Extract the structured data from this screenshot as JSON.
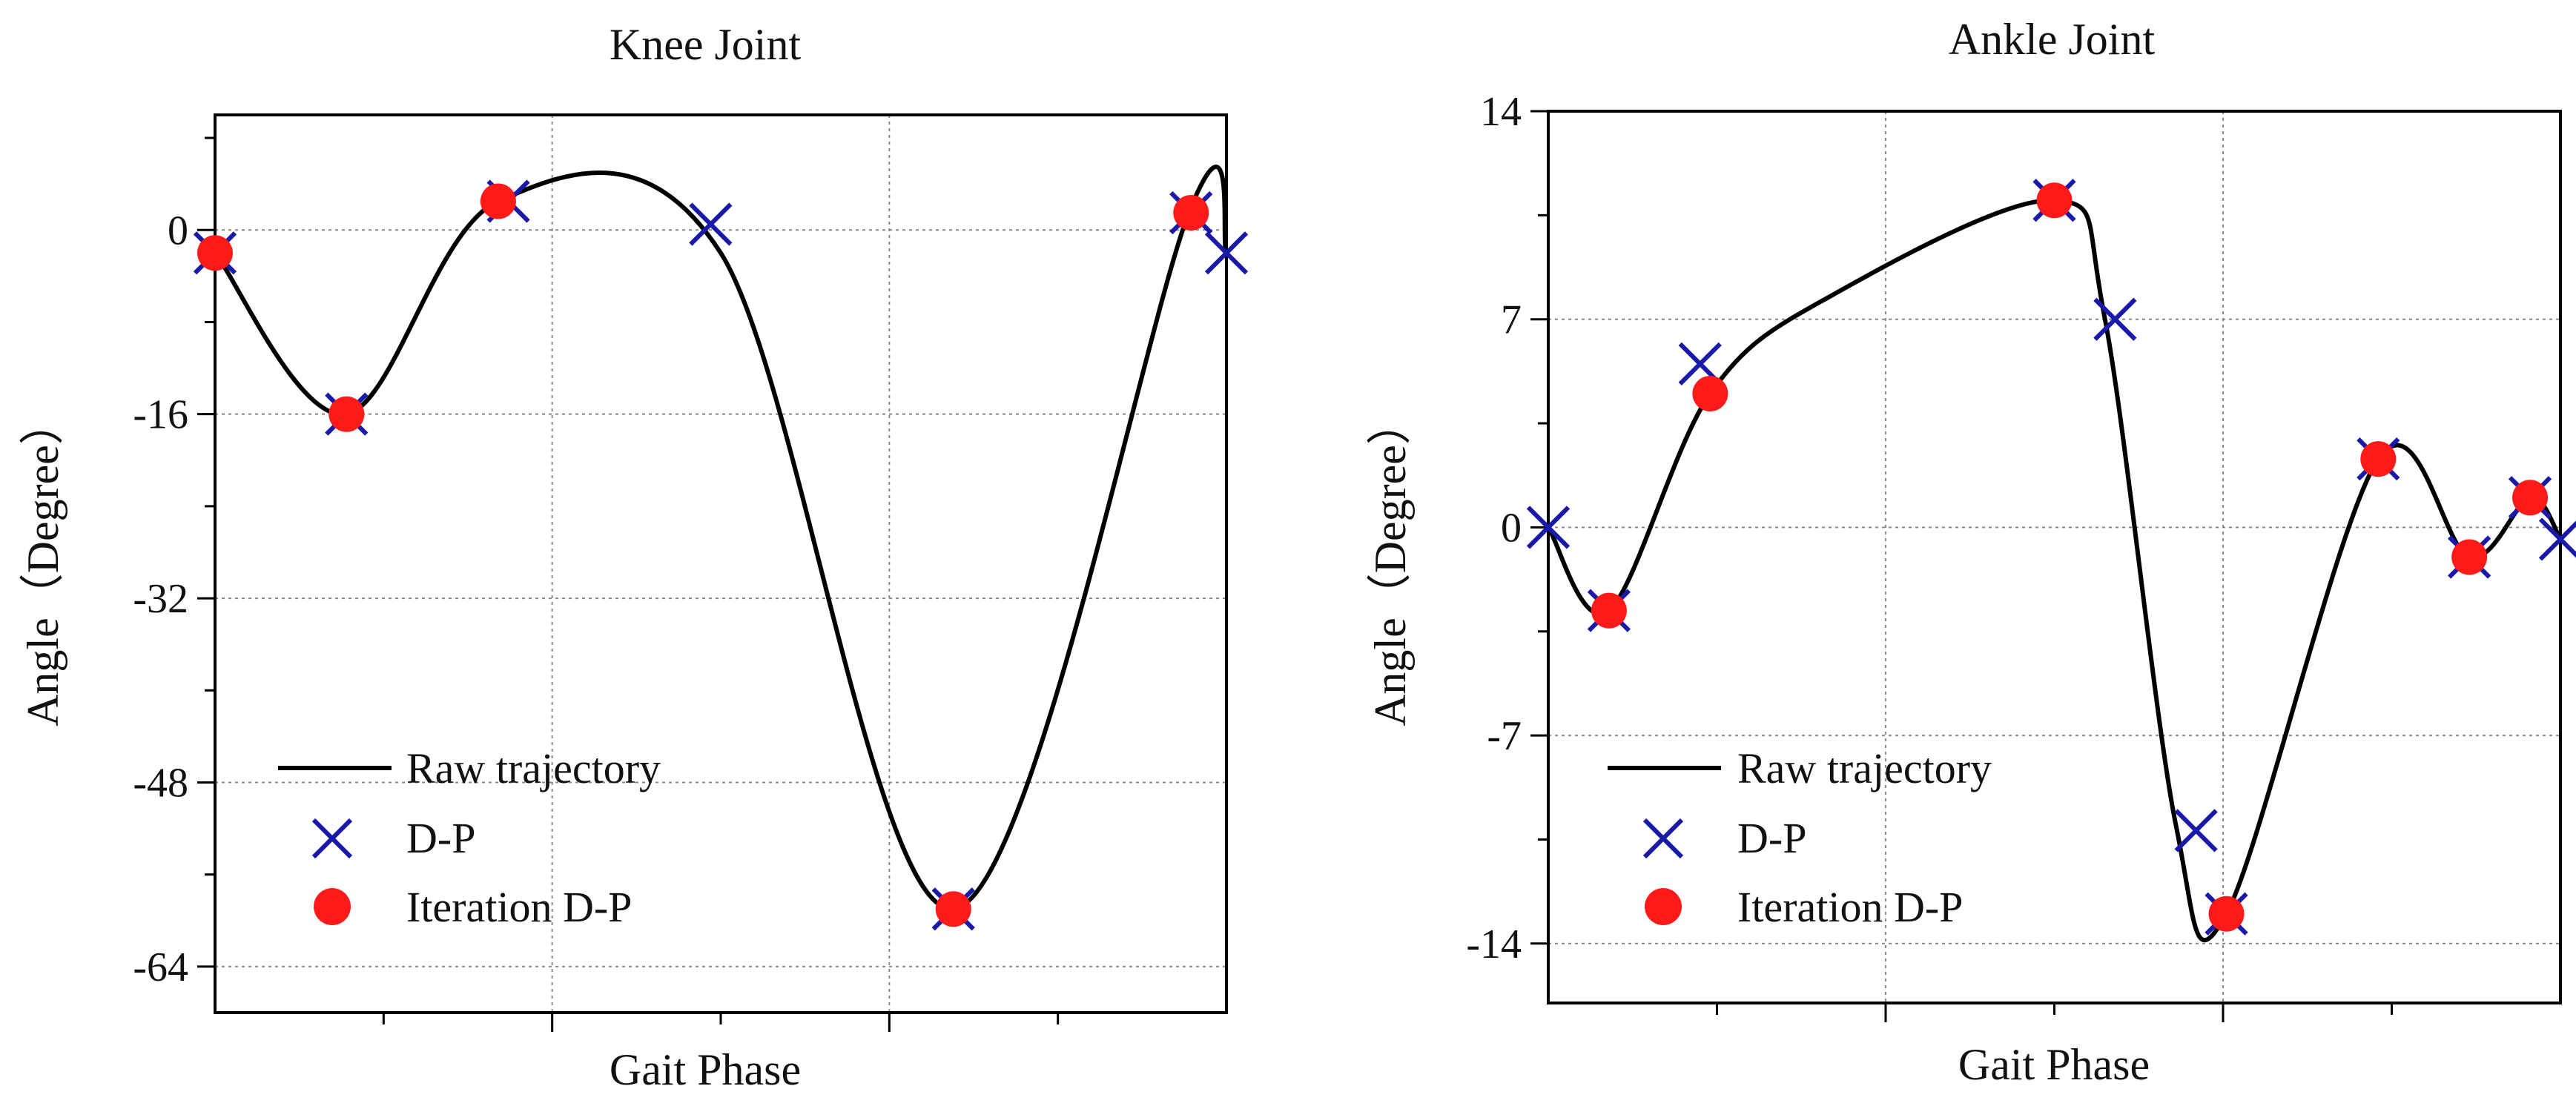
{
  "colors": {
    "line": "#000000",
    "dp": "#1a1aa8",
    "iteration": "#ff1a1a",
    "grid": "#8a8a8a",
    "frame": "#000000"
  },
  "legend": {
    "raw": "Raw trajectory",
    "dp": "D-P",
    "iteration": "Iteration D-P"
  },
  "chart_data": [
    {
      "type": "line",
      "title": "Knee Joint",
      "xlabel": "Gait Phase",
      "ylabel": "Angle（Degree）",
      "ylim": [
        -68,
        10
      ],
      "xlim": [
        0,
        1
      ],
      "yticks": [
        0,
        -16,
        -32,
        -48,
        -64
      ],
      "ytick_labels": [
        "0",
        "-16",
        "-32",
        "-48",
        "-64"
      ],
      "grid": true,
      "legend_position": "bottom-left",
      "series": [
        {
          "name": "Raw trajectory",
          "x": [
            0,
            0.13,
            0.28,
            0.5,
            0.73,
            0.965,
            1.0
          ],
          "y": [
            -2,
            -16,
            2.5,
            -2,
            -59,
            2,
            -2
          ]
        },
        {
          "name": "D-P",
          "x": [
            0.0,
            0.13,
            0.29,
            0.49,
            0.73,
            0.965,
            1.0
          ],
          "y": [
            -2,
            -16,
            2.5,
            0.5,
            -59,
            1.5,
            -2
          ]
        },
        {
          "name": "Iteration D-P",
          "x": [
            0.0,
            0.13,
            0.28,
            0.73,
            0.965
          ],
          "y": [
            -2,
            -16,
            2.5,
            -59,
            1.5
          ]
        }
      ]
    },
    {
      "type": "line",
      "title": "Ankle Joint",
      "xlabel": "Gait Phase",
      "ylabel": "Angle（Degree）",
      "ylim": [
        -16,
        14
      ],
      "xlim": [
        0,
        1
      ],
      "yticks": [
        14,
        7,
        0,
        -7,
        -14
      ],
      "ytick_labels": [
        "14",
        "7",
        "0",
        "-7",
        "-14"
      ],
      "grid": true,
      "legend_position": "bottom-left",
      "series": [
        {
          "name": "Raw trajectory",
          "x": [
            0,
            0.06,
            0.16,
            0.28,
            0.5,
            0.55,
            0.62,
            0.67,
            0.82,
            0.91,
            0.97,
            1.0
          ],
          "y": [
            0,
            -2.8,
            4.5,
            7.8,
            11,
            7,
            -10,
            -13,
            2.3,
            -1,
            1,
            -0.4
          ]
        },
        {
          "name": "D-P",
          "x": [
            0,
            0.06,
            0.15,
            0.5,
            0.56,
            0.64,
            0.67,
            0.82,
            0.91,
            0.97,
            1.0
          ],
          "y": [
            0,
            -2.8,
            5.5,
            11,
            7,
            -10.2,
            -13,
            2.3,
            -1,
            1,
            -0.4
          ]
        },
        {
          "name": "Iteration D-P",
          "x": [
            0.06,
            0.16,
            0.5,
            0.67,
            0.82,
            0.91,
            0.97
          ],
          "y": [
            -2.8,
            4.5,
            11,
            -13,
            2.3,
            -1,
            1
          ]
        }
      ]
    }
  ]
}
